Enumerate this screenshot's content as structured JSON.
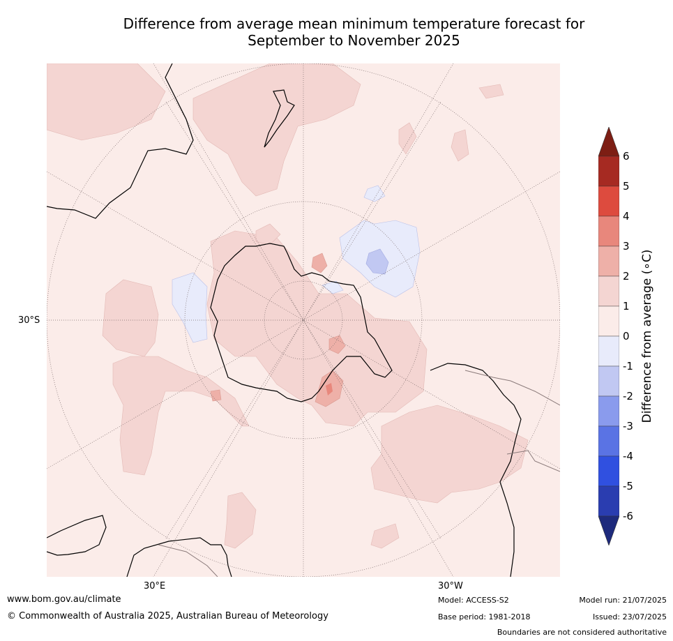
{
  "title_line1": "Difference from average mean minimum temperature forecast for",
  "title_line2": "September to November 2025",
  "map_labels": {
    "lat_30s": "30°S",
    "lon_30e": "30°E",
    "lon_30w": "30°W"
  },
  "colorbar": {
    "label": "Difference from average (∘C)",
    "ticks": [
      "6",
      "5",
      "4",
      "3",
      "2",
      "1",
      "0",
      "-1",
      "-2",
      "-3",
      "-4",
      "-5",
      "-6"
    ],
    "colors": {
      "over": "#7d1e14",
      "c5_6": "#a62a22",
      "c4_5": "#dd4b3e",
      "c3_4": "#e8877c",
      "c2_3": "#eeb0a8",
      "c1_2": "#f4d5d2",
      "c0_1": "#fbece9",
      "cm1_0": "#e8ebfb",
      "cm2_m1": "#c1c8f2",
      "cm3_m2": "#8a9bed",
      "cm4_m3": "#5a73e4",
      "cm5_m4": "#3050e0",
      "cm6_m5": "#2a3db0",
      "under": "#1e2a7c"
    }
  },
  "footer": {
    "website": "www.bom.gov.au/climate",
    "copyright": "© Commonwealth of Australia 2025, Australian Bureau of Meteorology",
    "model": "Model: ACCESS-S2",
    "base_period": "Base period: 1981-2018",
    "model_run": "Model run: 21/07/2025",
    "issued": "Issued: 23/07/2025",
    "disclaimer": "Boundaries are not considered authoritative"
  }
}
